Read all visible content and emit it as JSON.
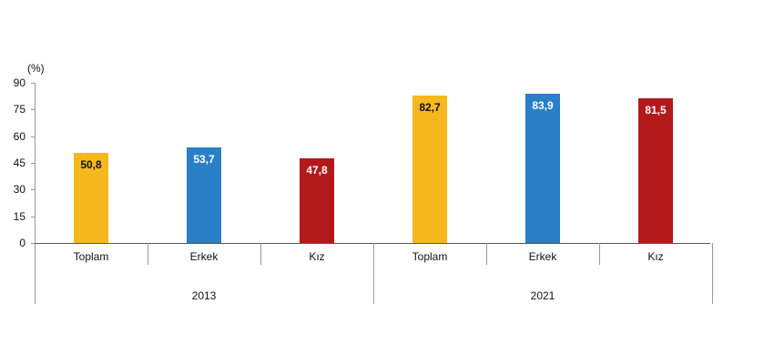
{
  "chart_data": {
    "type": "bar",
    "title": "",
    "ylabel": "(%)",
    "xlabel": "",
    "ylim": [
      0,
      90
    ],
    "yticks": [
      "0",
      "15",
      "30",
      "45",
      "60",
      "75",
      "90"
    ],
    "groups": [
      "2013",
      "2021"
    ],
    "categories": [
      "Toplam",
      "Erkek",
      "Kız"
    ],
    "series": [
      {
        "group": "2013",
        "values": [
          50.8,
          53.7,
          47.8
        ],
        "labels": [
          "50,8",
          "53,7",
          "47,8"
        ]
      },
      {
        "group": "2021",
        "values": [
          82.7,
          83.9,
          81.5
        ],
        "labels": [
          "82,7",
          "83,9",
          "81,5"
        ]
      }
    ],
    "colors": {
      "Toplam": "#f7b81f",
      "Erkek": "#2a7fc6",
      "Kız": "#b3181b"
    },
    "grid": false,
    "legend": "none"
  },
  "axis": {
    "unit": "(%)"
  }
}
